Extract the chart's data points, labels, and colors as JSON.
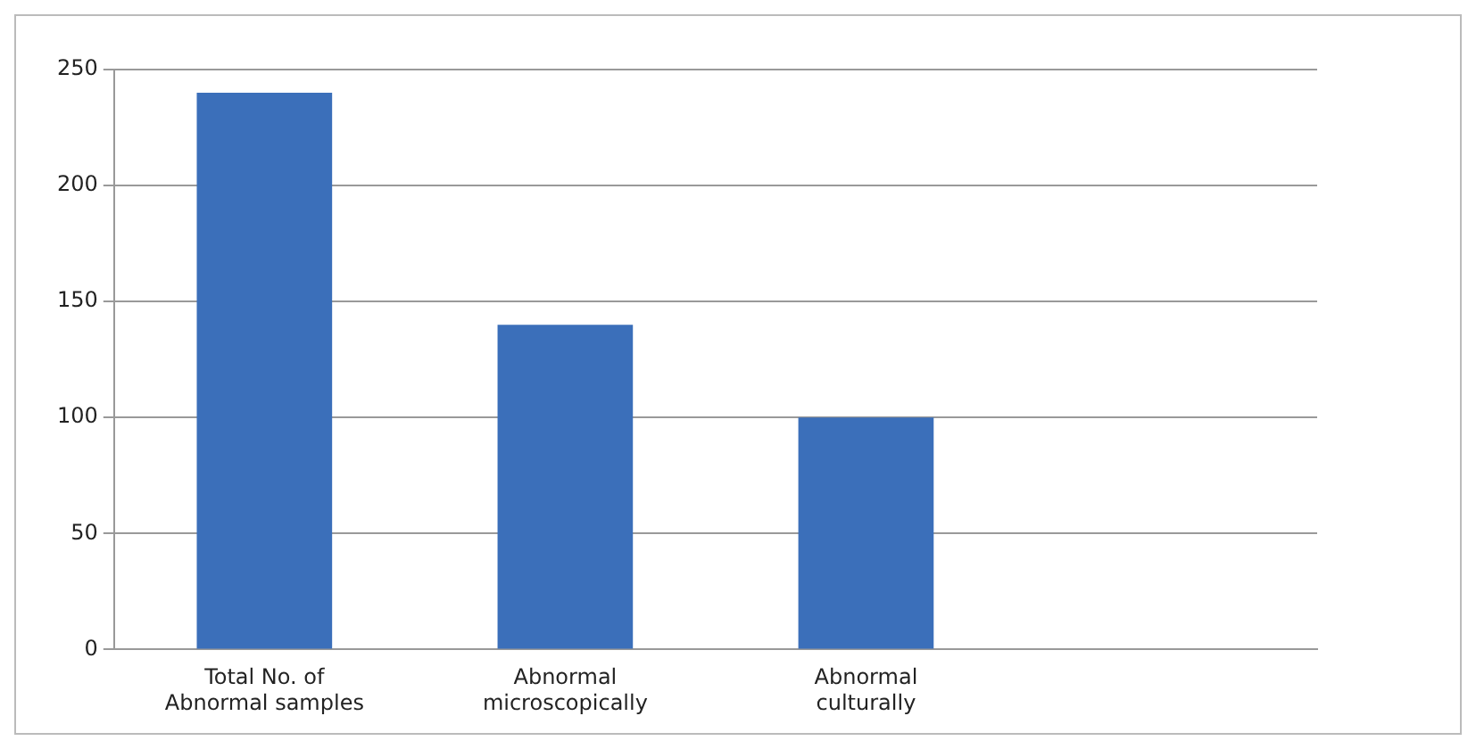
{
  "chart_data": {
    "type": "bar",
    "categories": [
      "Total No. of Abnormal samples",
      "Abnormal microscopically",
      "Abnormal culturally",
      null
    ],
    "values": [
      240,
      140,
      100,
      null
    ],
    "color": "#3b6fba",
    "ylim": [
      0,
      250
    ],
    "yticks": [
      0,
      50,
      100,
      150,
      200,
      250
    ],
    "grid": "y",
    "legend": false
  }
}
